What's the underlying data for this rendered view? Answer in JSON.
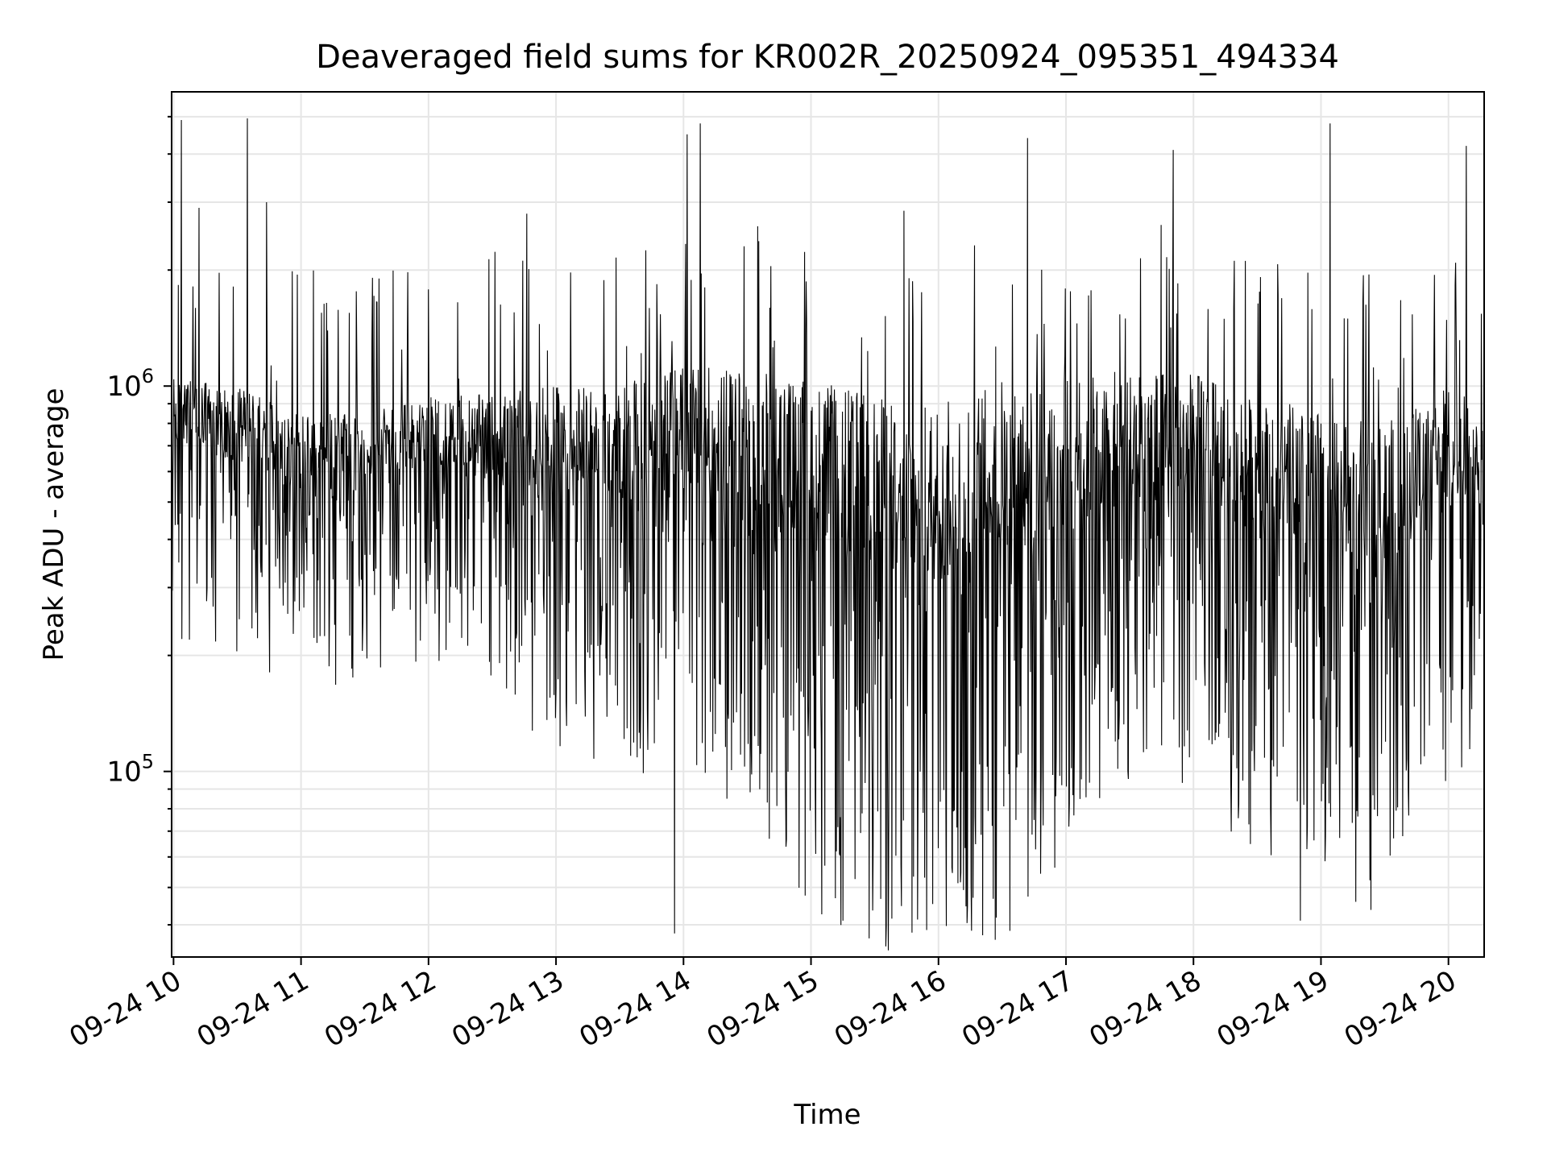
{
  "chart_data": {
    "type": "line",
    "title": "Deaveraged field sums for KR002R_20250924_095351_494334",
    "xlabel": "Time",
    "ylabel": "Peak ADU - average",
    "yscale": "log",
    "ylim": [
      33000,
      5800000
    ],
    "xlim_hours": [
      9.985,
      20.28
    ],
    "grid": true,
    "line_color": "#000000",
    "grid_color": "#e6e6e6",
    "x_ticks": [
      {
        "label": "09-24 10",
        "hour": 10
      },
      {
        "label": "09-24 11",
        "hour": 11
      },
      {
        "label": "09-24 12",
        "hour": 12
      },
      {
        "label": "09-24 13",
        "hour": 13
      },
      {
        "label": "09-24 14",
        "hour": 14
      },
      {
        "label": "09-24 15",
        "hour": 15
      },
      {
        "label": "09-24 16",
        "hour": 16
      },
      {
        "label": "09-24 17",
        "hour": 17
      },
      {
        "label": "09-24 18",
        "hour": 18
      },
      {
        "label": "09-24 19",
        "hour": 19
      },
      {
        "label": "09-24 20",
        "hour": 20
      }
    ],
    "y_ticks": [
      {
        "base": "10",
        "exp": "5",
        "value": 100000
      },
      {
        "base": "10",
        "exp": "6",
        "value": 1000000
      }
    ],
    "series": [
      {
        "name": "field sums",
        "profile_hours": [
          10.0,
          10.5,
          11.0,
          11.5,
          12.0,
          12.5,
          13.0,
          13.5,
          14.0,
          14.5,
          15.0,
          15.5,
          16.0,
          16.5,
          17.0,
          17.5,
          18.0,
          18.5,
          19.0,
          19.5,
          20.0,
          20.28
        ],
        "typical_low": [
          380000,
          330000,
          300000,
          300000,
          330000,
          280000,
          200000,
          180000,
          160000,
          140000,
          80000,
          62000,
          60000,
          65000,
          110000,
          160000,
          140000,
          110000,
          90000,
          75000,
          160000,
          200000
        ],
        "typical_high": [
          1050000,
          1000000,
          850000,
          850000,
          950000,
          950000,
          1000000,
          1000000,
          1150000,
          1100000,
          1050000,
          950000,
          900000,
          1050000,
          1050000,
          1100000,
          1100000,
          950000,
          850000,
          800000,
          1000000,
          900000
        ],
        "spikes": [
          {
            "hour": 10.06,
            "value": 4900000
          },
          {
            "hour": 10.58,
            "value": 4950000
          },
          {
            "hour": 10.73,
            "value": 3000000
          },
          {
            "hour": 10.2,
            "value": 2900000
          },
          {
            "hour": 12.77,
            "value": 2800000
          },
          {
            "hour": 14.03,
            "value": 4500000
          },
          {
            "hour": 14.13,
            "value": 4800000
          },
          {
            "hour": 15.73,
            "value": 2850000
          },
          {
            "hour": 16.7,
            "value": 4400000
          },
          {
            "hour": 17.84,
            "value": 4100000
          },
          {
            "hour": 19.07,
            "value": 4800000
          },
          {
            "hour": 20.14,
            "value": 4200000
          },
          {
            "hour": 13.93,
            "value": 38000
          },
          {
            "hour": 15.25,
            "value": 41000
          },
          {
            "hour": 18.84,
            "value": 41000
          },
          {
            "hour": 16.27,
            "value": 47000
          }
        ]
      }
    ]
  }
}
